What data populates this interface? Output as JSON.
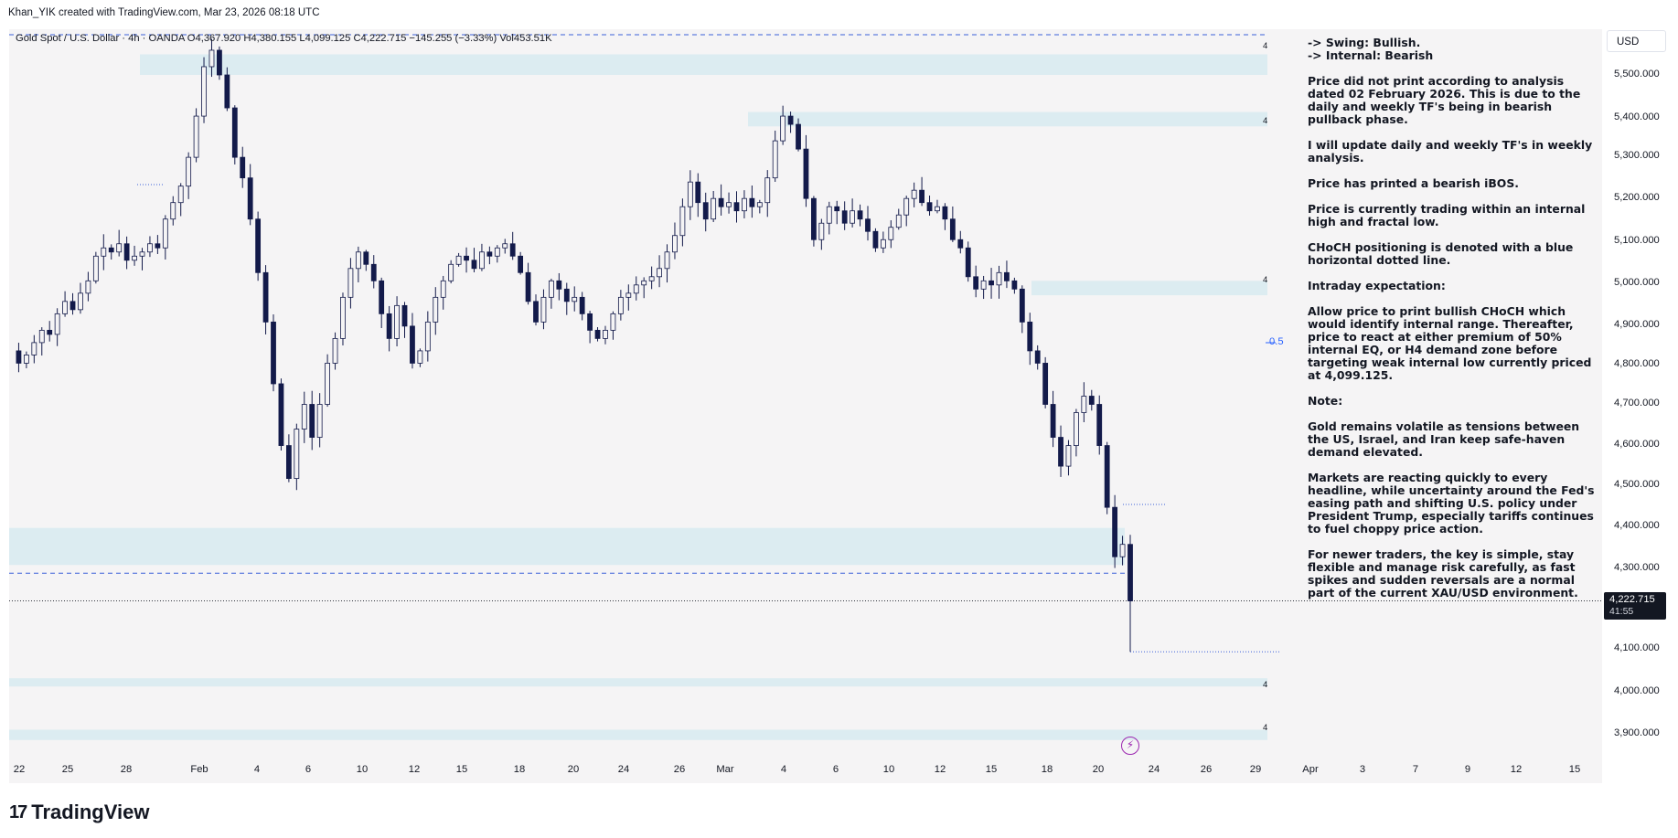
{
  "header": {
    "attribution": "Khan_YIK created with TradingView.com, Mar 23, 2026 08:18 UTC"
  },
  "symbol": {
    "name": "Gold Spot / U.S. Dollar · 4h · OANDA",
    "open": "O4,367.920",
    "high": "H4,380.155",
    "low": "L4,099.125",
    "close": "C4,222.715",
    "change": "−145.255 (−3.33%)",
    "volume": "Vol453.51K"
  },
  "currency_button": "USD",
  "price_axis": {
    "ticks": [
      "5,500.000",
      "5,400.000",
      "5,300.000",
      "5,200.000",
      "5,100.000",
      "5,000.000",
      "4,900.000",
      "4,800.000",
      "4,700.000",
      "4,600.000",
      "4,500.000",
      "4,400.000",
      "4,300.000",
      "4,100.000",
      "4,000.000",
      "3,900.000"
    ],
    "current_price": "4,222.715",
    "countdown": "41:55"
  },
  "time_axis": {
    "ticks": [
      "22",
      "25",
      "28",
      "Feb",
      "4",
      "6",
      "10",
      "12",
      "15",
      "18",
      "20",
      "24",
      "26",
      "Mar",
      "4",
      "6",
      "10",
      "12",
      "15",
      "18",
      "20",
      "24",
      "26",
      "29",
      "Apr",
      "3",
      "7",
      "9",
      "12",
      "15"
    ]
  },
  "zones": {
    "label": "4",
    "fib_label": "0.5"
  },
  "notes": {
    "swing": "-> Swing:  Bullish.",
    "internal": "-> Internal:  Bearish",
    "paragraphs": [
      "Price did not print according to analysis dated 02 February 2026.  This is due to the daily and weekly TF's being in bearish pullback phase.",
      "I will update daily and weekly TF's in weekly analysis.",
      "Price has printed a bearish iBOS.",
      "Price is currently trading within an internal high and fractal low.",
      "CHoCH positioning is denoted with a blue horizontal dotted line.",
      "Intraday expectation:",
      "Allow price to print bullish CHoCH which would identify internal range.  Thereafter, price to react at either premium of 50% internal EQ, or H4 demand zone before targeting weak internal low currently priced at 4,099.125.",
      "Note:",
      "Gold remains volatile as tensions between the US, Israel, and Iran keep safe-haven demand elevated.",
      "Markets are reacting quickly to every headline, while uncertainty around the Fed's easing path and shifting U.S. policy under President Trump, especially tariffs continues to fuel choppy price action.",
      "For newer traders, the key is simple, stay flexible and manage risk carefully, as fast spikes and sudden reversals are a normal part of the current XAU/USD environment."
    ]
  },
  "footer": {
    "brand": "TradingView",
    "logo_mark": "17"
  },
  "colors": {
    "candle": "#131a4a",
    "zone": "#dcecf1",
    "dashed_line": "#3a5fd9",
    "background": "#f5f4f5"
  },
  "chart_data": {
    "type": "candlestick",
    "title": "Gold Spot / U.S. Dollar · 4h · OANDA",
    "ylim": [
      3850,
      5600
    ],
    "price_path": [
      [
        0,
        4830
      ],
      [
        1,
        4800
      ],
      [
        2,
        4820
      ],
      [
        3,
        4850
      ],
      [
        4,
        4880
      ],
      [
        5,
        4870
      ],
      [
        6,
        4920
      ],
      [
        7,
        4950
      ],
      [
        8,
        4930
      ],
      [
        9,
        4970
      ],
      [
        10,
        5000
      ],
      [
        11,
        5060
      ],
      [
        12,
        5080
      ],
      [
        13,
        5070
      ],
      [
        14,
        5090
      ],
      [
        15,
        5050
      ],
      [
        16,
        5060
      ],
      [
        17,
        5070
      ],
      [
        18,
        5090
      ],
      [
        19,
        5080
      ],
      [
        20,
        5150
      ],
      [
        21,
        5190
      ],
      [
        22,
        5230
      ],
      [
        23,
        5300
      ],
      [
        24,
        5400
      ],
      [
        25,
        5520
      ],
      [
        26,
        5560
      ],
      [
        27,
        5500
      ],
      [
        28,
        5420
      ],
      [
        29,
        5300
      ],
      [
        30,
        5250
      ],
      [
        31,
        5150
      ],
      [
        32,
        5020
      ],
      [
        33,
        4900
      ],
      [
        34,
        4750
      ],
      [
        35,
        4600
      ],
      [
        36,
        4520
      ],
      [
        37,
        4640
      ],
      [
        38,
        4700
      ],
      [
        39,
        4620
      ],
      [
        40,
        4700
      ],
      [
        41,
        4800
      ],
      [
        42,
        4860
      ],
      [
        43,
        4960
      ],
      [
        44,
        5030
      ],
      [
        45,
        5070
      ],
      [
        46,
        5040
      ],
      [
        47,
        5000
      ],
      [
        48,
        4920
      ],
      [
        49,
        4860
      ],
      [
        50,
        4940
      ],
      [
        51,
        4890
      ],
      [
        52,
        4800
      ],
      [
        53,
        4830
      ],
      [
        54,
        4900
      ],
      [
        55,
        4960
      ],
      [
        56,
        5000
      ],
      [
        57,
        5040
      ],
      [
        58,
        5060
      ],
      [
        59,
        5050
      ],
      [
        60,
        5030
      ],
      [
        61,
        5070
      ],
      [
        62,
        5060
      ],
      [
        63,
        5080
      ],
      [
        64,
        5090
      ],
      [
        65,
        5060
      ],
      [
        66,
        5020
      ],
      [
        67,
        4950
      ],
      [
        68,
        4900
      ],
      [
        69,
        4960
      ],
      [
        70,
        5000
      ],
      [
        71,
        4980
      ],
      [
        72,
        4950
      ],
      [
        73,
        4960
      ],
      [
        74,
        4920
      ],
      [
        75,
        4880
      ],
      [
        76,
        4860
      ],
      [
        77,
        4880
      ],
      [
        78,
        4920
      ],
      [
        79,
        4960
      ],
      [
        80,
        4970
      ],
      [
        81,
        4990
      ],
      [
        82,
        5000
      ],
      [
        83,
        5010
      ],
      [
        84,
        5030
      ],
      [
        85,
        5070
      ],
      [
        86,
        5110
      ],
      [
        87,
        5180
      ],
      [
        88,
        5240
      ],
      [
        89,
        5190
      ],
      [
        90,
        5150
      ],
      [
        91,
        5200
      ],
      [
        92,
        5180
      ],
      [
        93,
        5190
      ],
      [
        94,
        5170
      ],
      [
        95,
        5200
      ],
      [
        96,
        5180
      ],
      [
        97,
        5190
      ],
      [
        98,
        5250
      ],
      [
        99,
        5340
      ],
      [
        100,
        5400
      ],
      [
        101,
        5380
      ],
      [
        102,
        5320
      ],
      [
        103,
        5200
      ],
      [
        104,
        5100
      ],
      [
        105,
        5140
      ],
      [
        106,
        5180
      ],
      [
        107,
        5170
      ],
      [
        108,
        5140
      ],
      [
        109,
        5170
      ],
      [
        110,
        5150
      ],
      [
        111,
        5120
      ],
      [
        112,
        5080
      ],
      [
        113,
        5100
      ],
      [
        114,
        5130
      ],
      [
        115,
        5160
      ],
      [
        116,
        5200
      ],
      [
        117,
        5220
      ],
      [
        118,
        5190
      ],
      [
        119,
        5170
      ],
      [
        120,
        5180
      ],
      [
        121,
        5150
      ],
      [
        122,
        5100
      ],
      [
        123,
        5080
      ],
      [
        124,
        5010
      ],
      [
        125,
        4980
      ],
      [
        126,
        5000
      ],
      [
        127,
        4990
      ],
      [
        128,
        5020
      ],
      [
        129,
        5000
      ],
      [
        130,
        4980
      ],
      [
        131,
        4900
      ],
      [
        132,
        4830
      ],
      [
        133,
        4800
      ],
      [
        134,
        4700
      ],
      [
        135,
        4620
      ],
      [
        136,
        4550
      ],
      [
        137,
        4600
      ],
      [
        138,
        4680
      ],
      [
        139,
        4720
      ],
      [
        140,
        4700
      ],
      [
        141,
        4600
      ],
      [
        142,
        4450
      ],
      [
        143,
        4330
      ],
      [
        144,
        4360
      ],
      [
        145,
        4222.715
      ]
    ],
    "demand_zones": [
      [
        5500,
        5550
      ],
      [
        5375,
        5410
      ],
      [
        4965,
        5000
      ],
      [
        4310,
        4400
      ],
      [
        4015,
        4035
      ],
      [
        3885,
        3910
      ]
    ],
    "choch_levels": [
      4290,
      4099.125
    ],
    "current_price": 4222.715
  }
}
